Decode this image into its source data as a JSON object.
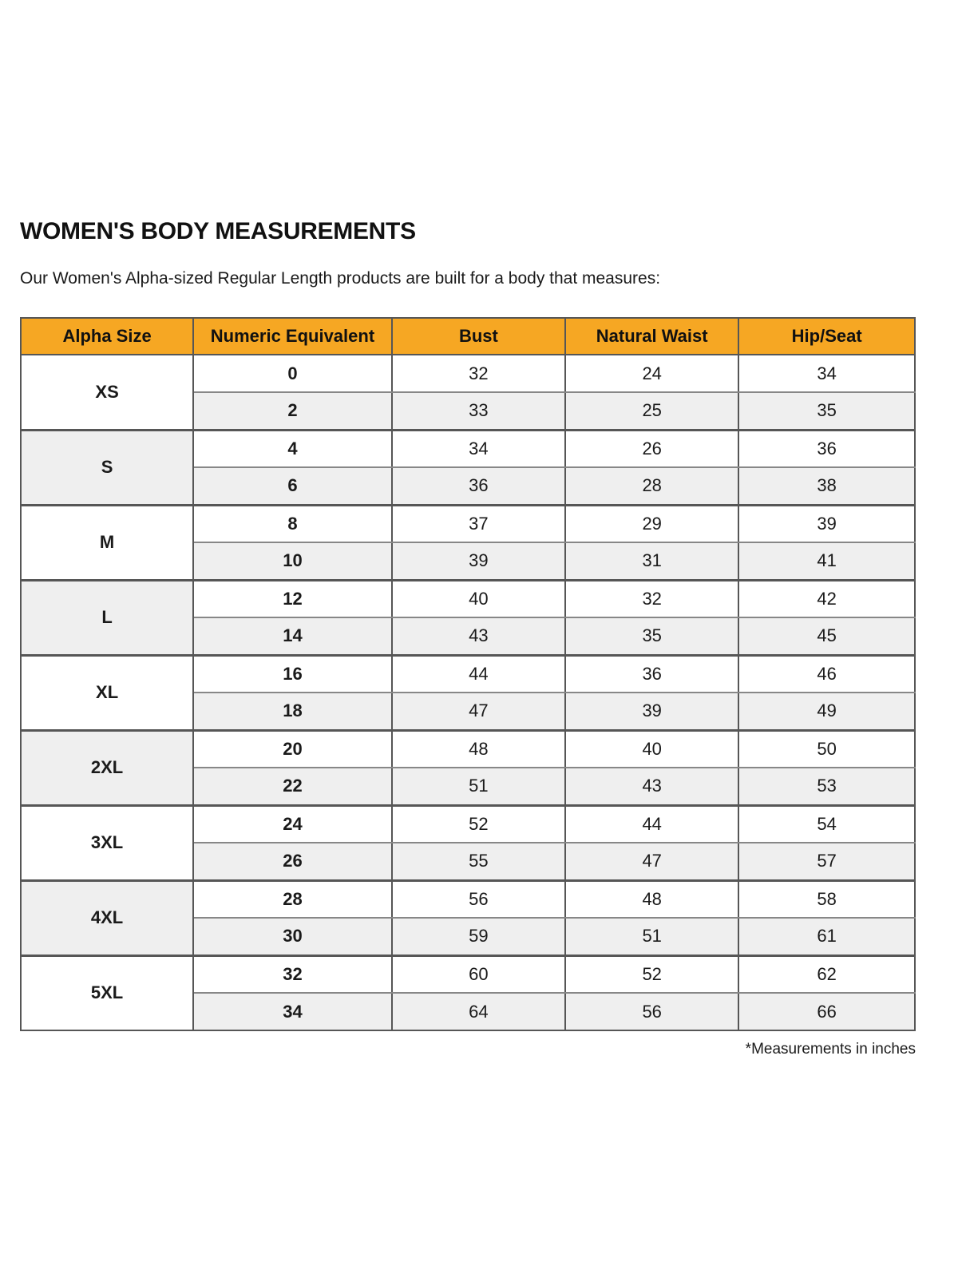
{
  "page": {
    "title": "WOMEN'S BODY MEASUREMENTS",
    "subtitle": "Our Women's Alpha-sized Regular Length products are built for a body that measures:",
    "footnote": "*Measurements in inches"
  },
  "colors": {
    "header_bg": "#F6A723",
    "row_bg": "#FFFFFF",
    "row_alt_bg": "#EFEFEF",
    "border_dark": "#565656",
    "border_light": "#878787",
    "text": "#1A1A1A"
  },
  "chart_data": {
    "type": "table",
    "title": "WOMEN'S BODY MEASUREMENTS",
    "columns": [
      "Alpha Size",
      "Numeric Equivalent",
      "Bust",
      "Natural Waist",
      "Hip/Seat"
    ],
    "units": "inches",
    "groups": [
      {
        "alpha": "XS",
        "rows": [
          [
            "0",
            "32",
            "24",
            "34"
          ],
          [
            "2",
            "33",
            "25",
            "35"
          ]
        ]
      },
      {
        "alpha": "S",
        "rows": [
          [
            "4",
            "34",
            "26",
            "36"
          ],
          [
            "6",
            "36",
            "28",
            "38"
          ]
        ]
      },
      {
        "alpha": "M",
        "rows": [
          [
            "8",
            "37",
            "29",
            "39"
          ],
          [
            "10",
            "39",
            "31",
            "41"
          ]
        ]
      },
      {
        "alpha": "L",
        "rows": [
          [
            "12",
            "40",
            "32",
            "42"
          ],
          [
            "14",
            "43",
            "35",
            "45"
          ]
        ]
      },
      {
        "alpha": "XL",
        "rows": [
          [
            "16",
            "44",
            "36",
            "46"
          ],
          [
            "18",
            "47",
            "39",
            "49"
          ]
        ]
      },
      {
        "alpha": "2XL",
        "rows": [
          [
            "20",
            "48",
            "40",
            "50"
          ],
          [
            "22",
            "51",
            "43",
            "53"
          ]
        ]
      },
      {
        "alpha": "3XL",
        "rows": [
          [
            "24",
            "52",
            "44",
            "54"
          ],
          [
            "26",
            "55",
            "47",
            "57"
          ]
        ]
      },
      {
        "alpha": "4XL",
        "rows": [
          [
            "28",
            "56",
            "48",
            "58"
          ],
          [
            "30",
            "59",
            "51",
            "61"
          ]
        ]
      },
      {
        "alpha": "5XL",
        "rows": [
          [
            "32",
            "60",
            "52",
            "62"
          ],
          [
            "34",
            "64",
            "56",
            "66"
          ]
        ]
      }
    ]
  }
}
